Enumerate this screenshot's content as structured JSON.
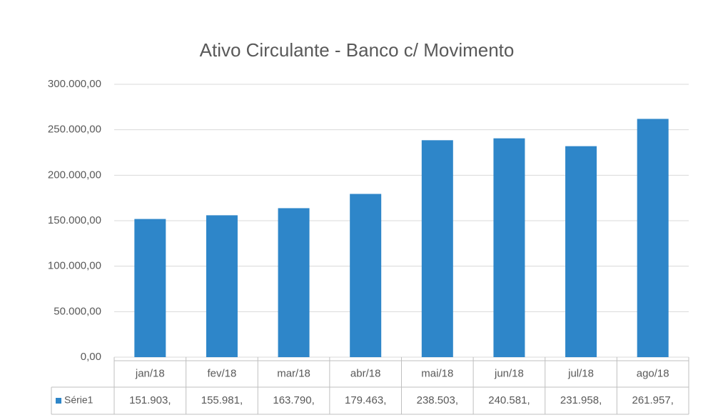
{
  "chart_data": {
    "type": "bar",
    "title": "Ativo Circulante - Banco c/ Movimento",
    "categories": [
      "jan/18",
      "fev/18",
      "mar/18",
      "abr/18",
      "mai/18",
      "jun/18",
      "jul/18",
      "ago/18"
    ],
    "series": [
      {
        "name": "Série1",
        "color": "#2e86c9",
        "values": [
          151903,
          155981,
          163790,
          179463,
          238503,
          240581,
          231958,
          261957
        ],
        "value_labels": [
          "151.903,",
          "155.981,",
          "163.790,",
          "179.463,",
          "238.503,",
          "240.581,",
          "231.958,",
          "261.957,"
        ]
      }
    ],
    "ylim": [
      0,
      300000
    ],
    "yticks": [
      {
        "value": 0,
        "label": "0,00"
      },
      {
        "value": 50000,
        "label": "50.000,00"
      },
      {
        "value": 100000,
        "label": "100.000,00"
      },
      {
        "value": 150000,
        "label": "150.000,00"
      },
      {
        "value": 200000,
        "label": "200.000,00"
      },
      {
        "value": 250000,
        "label": "250.000,00"
      },
      {
        "value": 300000,
        "label": "300.000,00"
      }
    ],
    "grid": true
  }
}
